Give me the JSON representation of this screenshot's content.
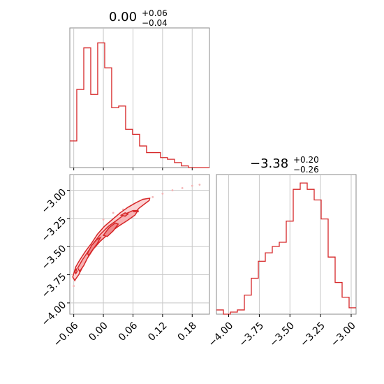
{
  "chart_data": [
    {
      "type": "histogram",
      "title_main": "0.00",
      "title_sup": "+0.06",
      "title_sub": "−0.04",
      "xlim": [
        -0.068,
        0.215
      ],
      "bin_edges": [
        -0.068,
        -0.0539,
        -0.0397,
        -0.0256,
        -0.0115,
        0.0027,
        0.0168,
        0.031,
        0.0451,
        0.0592,
        0.0734,
        0.0875,
        0.1017,
        0.1158,
        0.1299,
        0.1441,
        0.1582,
        0.1724,
        0.1865,
        0.2007,
        0.215
      ],
      "values": [
        16,
        47,
        72,
        44,
        75,
        60,
        36,
        37,
        23,
        20,
        13,
        9,
        9,
        6,
        5,
        3,
        1,
        0,
        0,
        0
      ],
      "ylim": [
        0,
        84
      ],
      "color": "#d62728"
    },
    {
      "type": "histogram",
      "title_main": "−3.38",
      "title_sup": "+0.20",
      "title_sub": "−0.26",
      "xlim": [
        -4.1,
        -2.96
      ],
      "bin_edges": [
        -4.1,
        -4.043,
        -3.986,
        -3.929,
        -3.872,
        -3.815,
        -3.758,
        -3.701,
        -3.644,
        -3.587,
        -3.53,
        -3.473,
        -3.416,
        -3.359,
        -3.302,
        -3.245,
        -3.188,
        -3.131,
        -3.074,
        -3.017,
        -2.96
      ],
      "values": [
        2,
        0,
        1,
        2,
        9,
        17,
        25,
        29,
        32,
        34,
        44,
        59,
        62,
        59,
        54,
        45,
        27,
        15,
        8,
        3
      ],
      "ylim": [
        0,
        66
      ],
      "xticks": [
        -4.0,
        -3.75,
        -3.5,
        -3.25,
        -3.0
      ],
      "xtick_labels": [
        "−4.00",
        "−3.75",
        "−3.50",
        "−3.25",
        "−3.00"
      ],
      "color": "#d62728"
    },
    {
      "type": "contour",
      "xlim": [
        -0.068,
        0.215
      ],
      "ylim": [
        -4.1,
        -2.86
      ],
      "xticks": [
        -0.06,
        0.0,
        0.06,
        0.12,
        0.18
      ],
      "xtick_labels": [
        "−0.06",
        "0.00",
        "0.06",
        "0.12",
        "0.18"
      ],
      "yticks": [
        -3.0,
        -3.25,
        -3.5,
        -3.75,
        -4.0
      ],
      "ytick_labels": [
        "−3.00",
        "−3.25",
        "−3.50",
        "−3.75",
        "−4.00"
      ],
      "grid": true,
      "color": "#d62728",
      "scatter": [
        [
          0.0,
          -3.26
        ],
        [
          0.02,
          -3.2
        ],
        [
          0.04,
          -3.17
        ],
        [
          0.06,
          -3.14
        ],
        [
          0.08,
          -3.1
        ],
        [
          0.1,
          -3.06
        ],
        [
          0.12,
          -3.03
        ],
        [
          0.14,
          -3.0
        ],
        [
          0.16,
          -2.98
        ],
        [
          0.18,
          -2.96
        ],
        [
          0.195,
          -2.95
        ]
      ],
      "tail": [
        [
          -0.06,
          -3.85
        ],
        [
          -0.058,
          -3.8
        ],
        [
          -0.055,
          -3.74
        ]
      ],
      "level_outer": [
        [
          -0.062,
          -3.77
        ],
        [
          -0.056,
          -3.68
        ],
        [
          -0.048,
          -3.62
        ],
        [
          -0.036,
          -3.54
        ],
        [
          -0.024,
          -3.47
        ],
        [
          -0.012,
          -3.39
        ],
        [
          0.002,
          -3.32
        ],
        [
          0.018,
          -3.26
        ],
        [
          0.034,
          -3.2
        ],
        [
          0.05,
          -3.15
        ],
        [
          0.066,
          -3.11
        ],
        [
          0.08,
          -3.08
        ],
        [
          0.094,
          -3.07
        ],
        [
          0.093,
          -3.09
        ],
        [
          0.084,
          -3.12
        ],
        [
          0.072,
          -3.16
        ],
        [
          0.06,
          -3.22
        ],
        [
          0.046,
          -3.27
        ],
        [
          0.03,
          -3.32
        ],
        [
          0.012,
          -3.38
        ],
        [
          -0.006,
          -3.45
        ],
        [
          -0.022,
          -3.52
        ],
        [
          -0.034,
          -3.6
        ],
        [
          -0.042,
          -3.68
        ],
        [
          -0.05,
          -3.75
        ],
        [
          -0.058,
          -3.8
        ]
      ],
      "level_mid": [
        [
          -0.052,
          -3.69
        ],
        [
          -0.043,
          -3.62
        ],
        [
          -0.032,
          -3.55
        ],
        [
          -0.02,
          -3.47
        ],
        [
          -0.006,
          -3.39
        ],
        [
          0.01,
          -3.32
        ],
        [
          0.026,
          -3.27
        ],
        [
          0.044,
          -3.21
        ],
        [
          0.06,
          -3.18
        ],
        [
          0.07,
          -3.18
        ],
        [
          0.064,
          -3.22
        ],
        [
          0.048,
          -3.27
        ],
        [
          0.03,
          -3.32
        ],
        [
          0.012,
          -3.38
        ],
        [
          -0.006,
          -3.45
        ],
        [
          -0.02,
          -3.52
        ],
        [
          -0.032,
          -3.6
        ],
        [
          -0.04,
          -3.67
        ],
        [
          -0.048,
          -3.72
        ]
      ],
      "level_inner": [
        [
          -0.032,
          -3.56
        ],
        [
          -0.024,
          -3.49
        ],
        [
          -0.014,
          -3.44
        ],
        [
          -0.006,
          -3.42
        ],
        [
          -0.012,
          -3.47
        ],
        [
          -0.022,
          -3.53
        ],
        [
          -0.03,
          -3.58
        ]
      ],
      "level_inner2": [
        [
          0.0,
          -3.4
        ],
        [
          0.012,
          -3.33
        ],
        [
          0.024,
          -3.29
        ],
        [
          0.03,
          -3.3
        ],
        [
          0.02,
          -3.36
        ],
        [
          0.008,
          -3.41
        ]
      ],
      "blob_small": [
        [
          -0.058,
          -3.72
        ],
        [
          -0.055,
          -3.7
        ],
        [
          -0.053,
          -3.72
        ],
        [
          -0.056,
          -3.74
        ]
      ],
      "blob_right": [
        [
          0.036,
          -3.22
        ],
        [
          0.044,
          -3.2
        ],
        [
          0.05,
          -3.21
        ],
        [
          0.044,
          -3.23
        ]
      ],
      "dash_right": [
        [
          0.06,
          -3.19
        ],
        [
          0.072,
          -3.19
        ]
      ]
    }
  ]
}
